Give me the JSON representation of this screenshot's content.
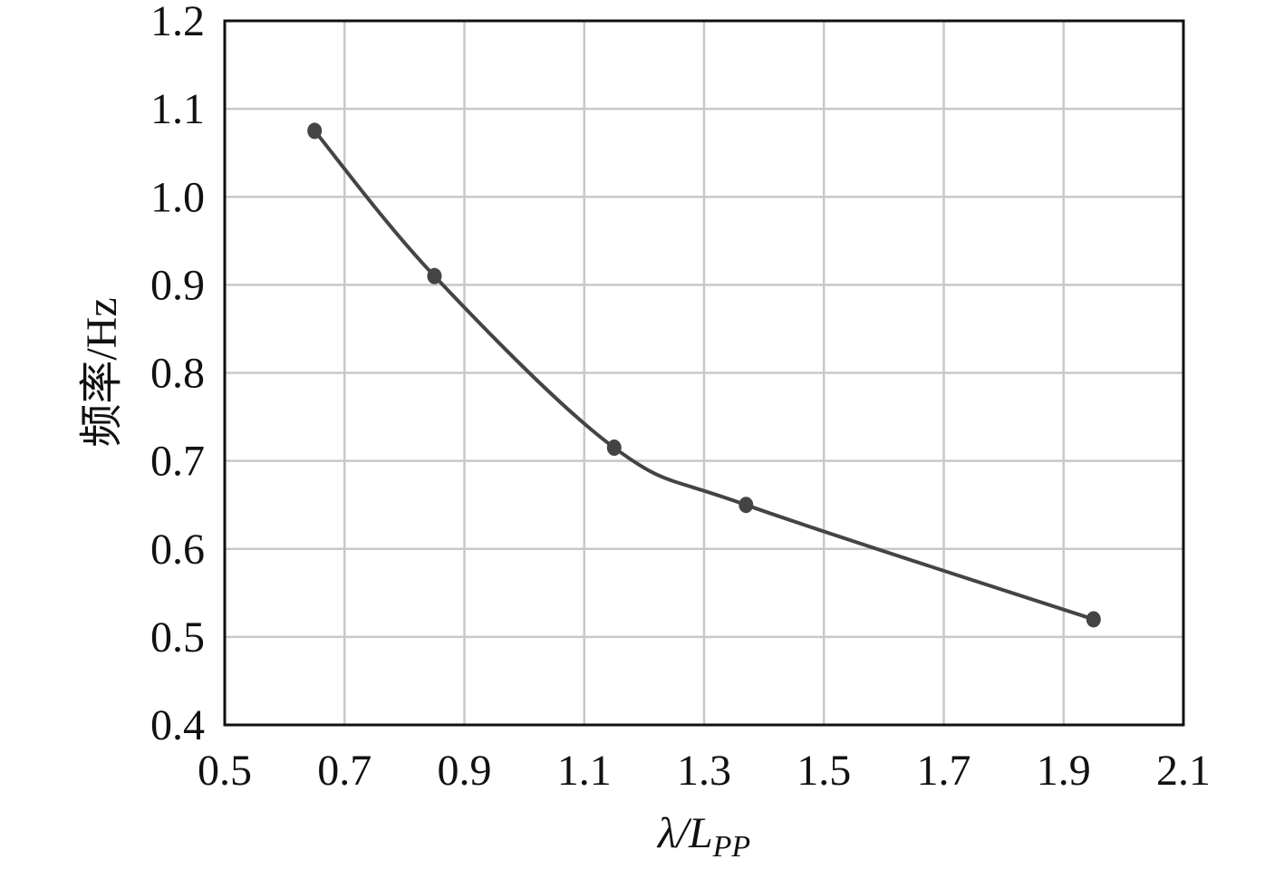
{
  "chart_data": {
    "type": "line",
    "x_label": {
      "main": "λ/L",
      "sub": "PP"
    },
    "y_label": "频率/Hz",
    "x": [
      0.65,
      0.85,
      1.15,
      1.37,
      1.95
    ],
    "series": [
      {
        "color": "#444444",
        "values": [
          1.075,
          0.91,
          0.715,
          0.65,
          0.52
        ]
      }
    ],
    "xlim": [
      0.5,
      2.1
    ],
    "xticks": [
      0.5,
      0.7,
      0.9,
      1.1,
      1.3,
      1.5,
      1.7,
      1.9,
      2.1
    ],
    "ylim": [
      0.4,
      1.2
    ],
    "yticks": [
      0.4,
      0.5,
      0.6,
      0.7,
      0.8,
      0.9,
      {
        "value": 1,
        "label": "1.0"
      },
      1.1,
      1.2
    ],
    "grid": true,
    "smooth": true
  }
}
